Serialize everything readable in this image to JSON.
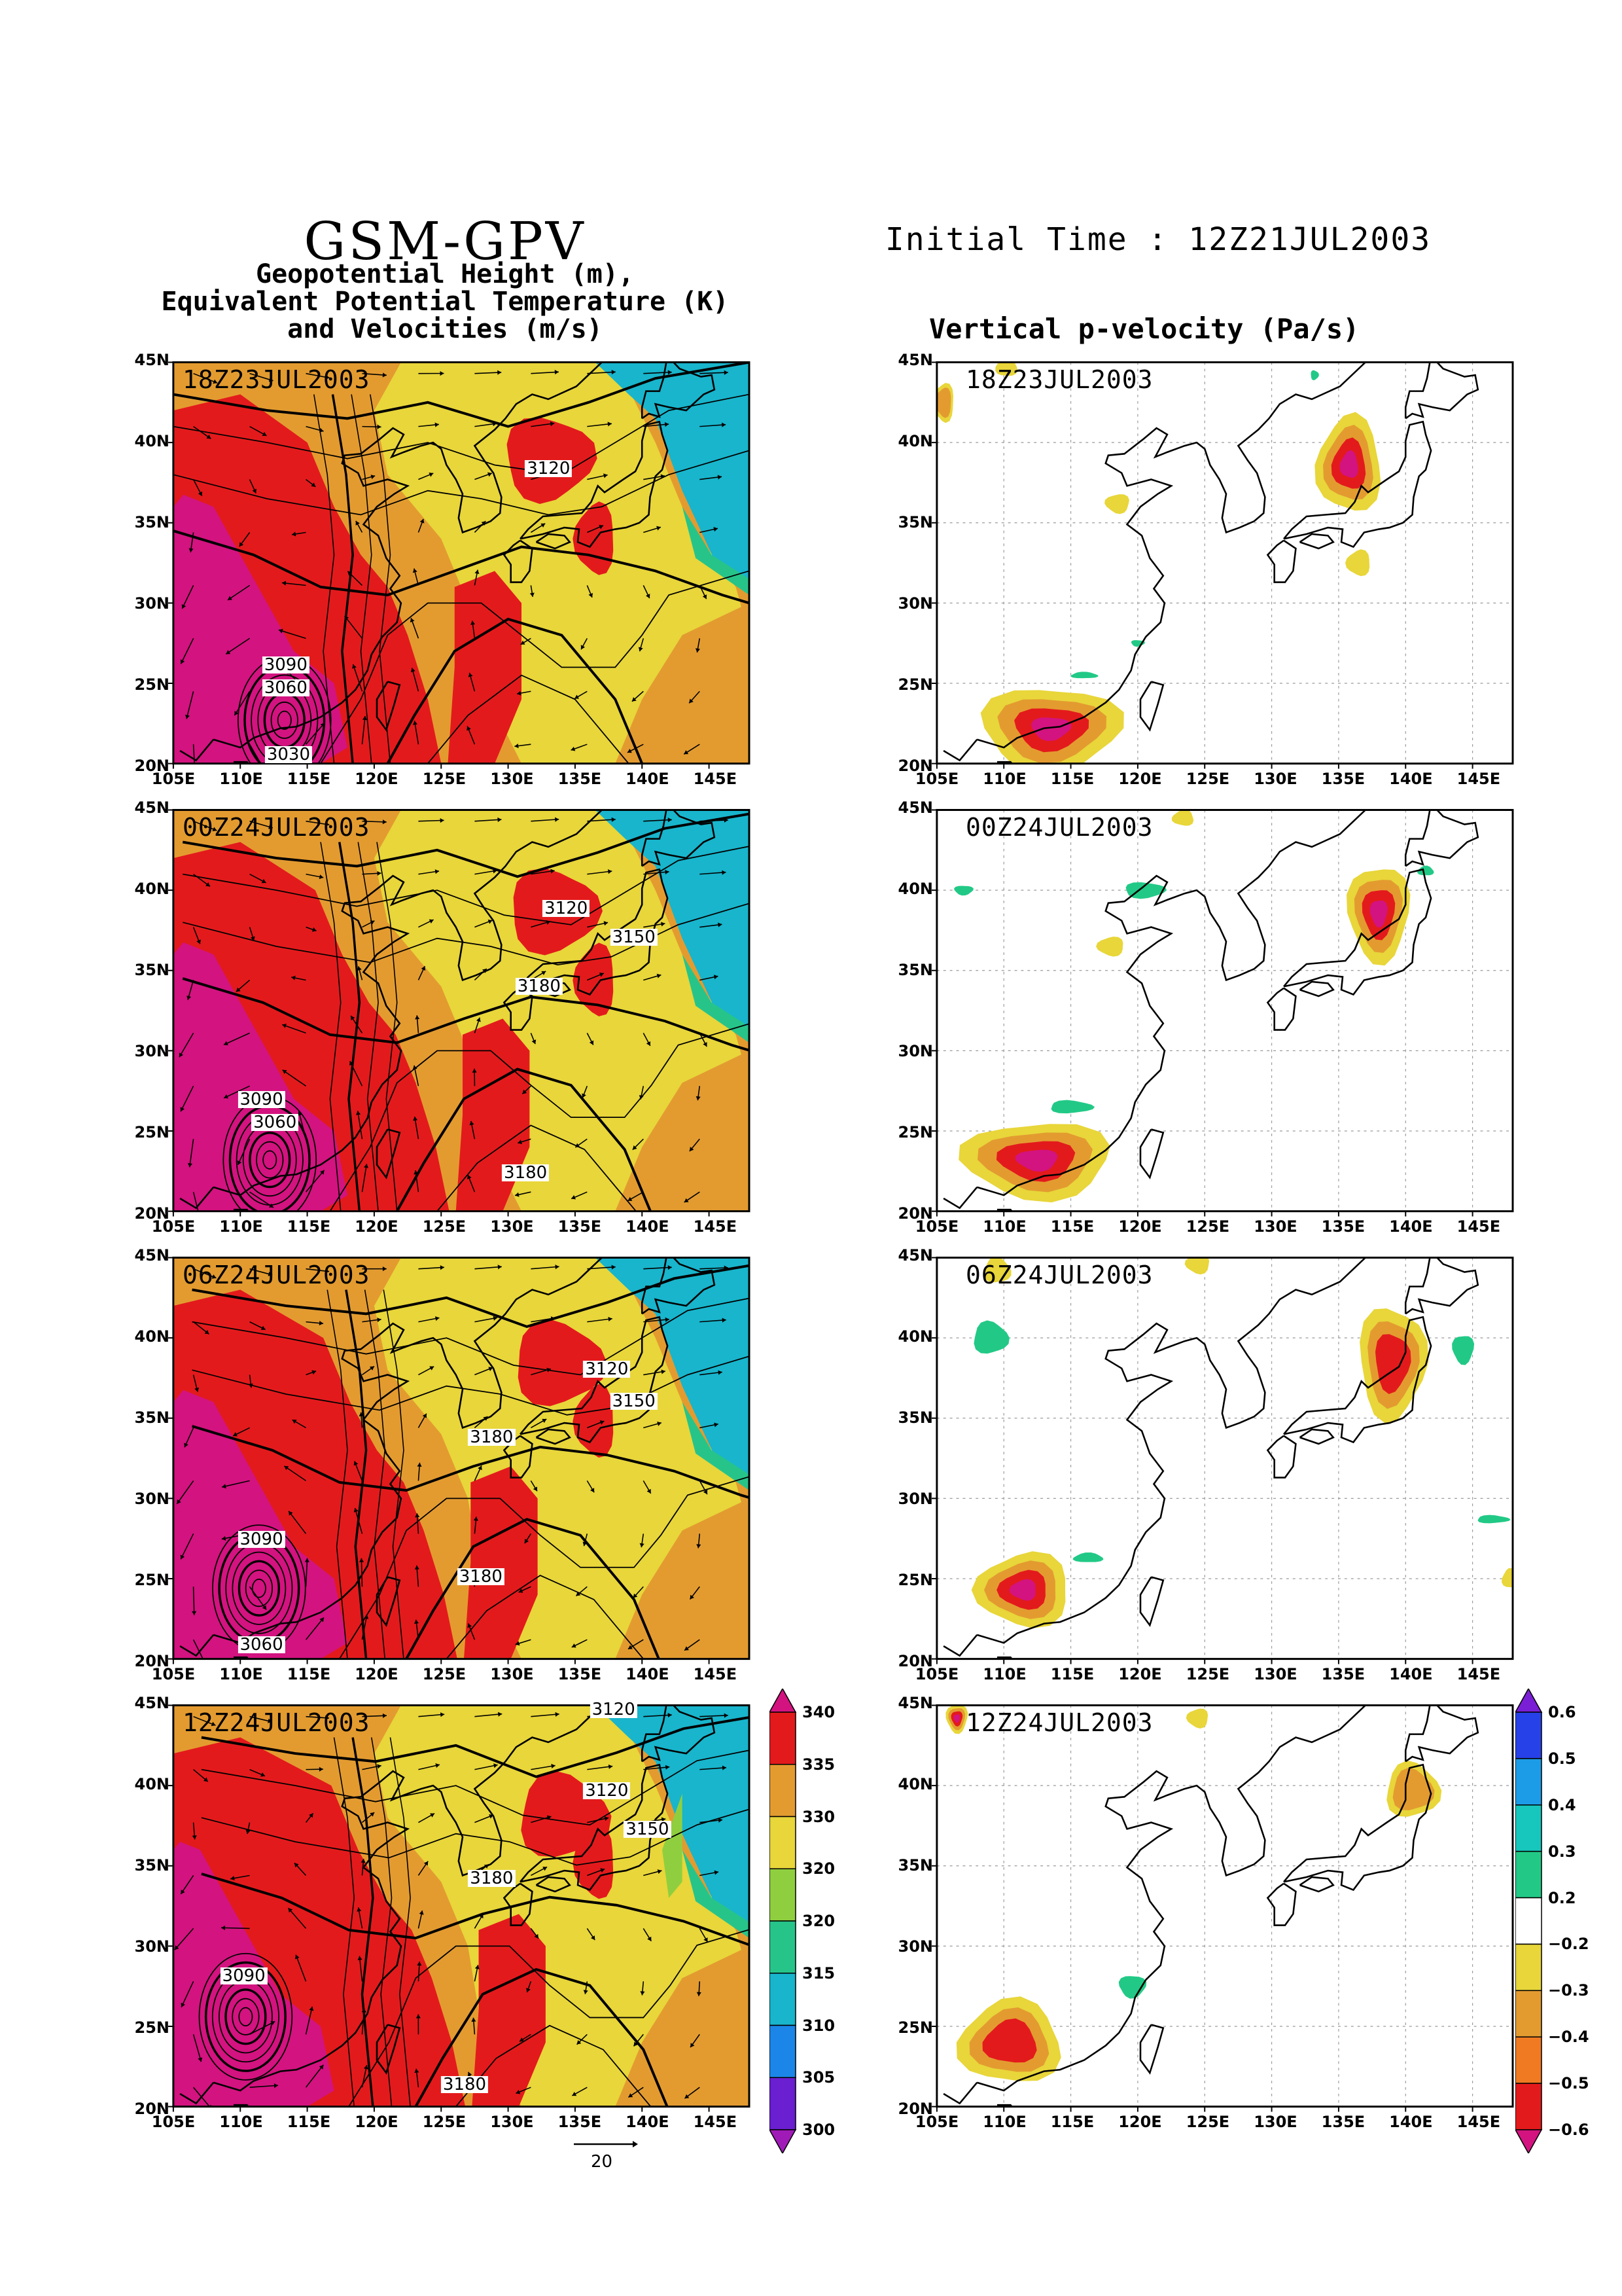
{
  "header": {
    "title": "GSM-GPV",
    "subtitle_lines": [
      "Geopotential Height (m),",
      "Equivalent Potential Temperature (K)",
      "and Velocities (m/s)"
    ],
    "initial_time": "Initial Time : 12Z21JUL2003",
    "right_title": "Vertical p-velocity (Pa/s)"
  },
  "axes": {
    "lat_ticks": [
      "45N",
      "40N",
      "35N",
      "30N",
      "25N",
      "20N"
    ],
    "lon_ticks": [
      "105E",
      "110E",
      "115E",
      "120E",
      "125E",
      "130E",
      "135E",
      "140E",
      "145E"
    ]
  },
  "panels": [
    {
      "time": "18Z23JUL2003",
      "contour_labels": [
        {
          "text": "3120",
          "lon": 132.7,
          "lat": 38.3
        },
        {
          "text": "3090",
          "lon": 113.3,
          "lat": 26.2
        },
        {
          "text": "3060",
          "lon": 113.3,
          "lat": 24.8
        },
        {
          "text": "3030",
          "lon": 113.5,
          "lat": 20.7
        }
      ]
    },
    {
      "time": "00Z24JUL2003",
      "contour_labels": [
        {
          "text": "3120",
          "lon": 134.0,
          "lat": 38.8
        },
        {
          "text": "3150",
          "lon": 139.0,
          "lat": 37.0
        },
        {
          "text": "3180",
          "lon": 132.0,
          "lat": 34.0
        },
        {
          "text": "3090",
          "lon": 111.5,
          "lat": 27.0
        },
        {
          "text": "3060",
          "lon": 112.5,
          "lat": 25.6
        },
        {
          "text": "3180",
          "lon": 131.0,
          "lat": 22.5
        }
      ]
    },
    {
      "time": "06Z24JUL2003",
      "contour_labels": [
        {
          "text": "3120",
          "lon": 137.0,
          "lat": 38.0
        },
        {
          "text": "3150",
          "lon": 139.0,
          "lat": 36.0
        },
        {
          "text": "3180",
          "lon": 128.5,
          "lat": 33.8
        },
        {
          "text": "3090",
          "lon": 111.5,
          "lat": 27.5
        },
        {
          "text": "3180",
          "lon": 127.7,
          "lat": 25.2
        },
        {
          "text": "3060",
          "lon": 111.5,
          "lat": 21.0
        }
      ]
    },
    {
      "time": "12Z24JUL2003",
      "contour_labels": [
        {
          "text": "3120",
          "lon": 137.5,
          "lat": 44.6
        },
        {
          "text": "3120",
          "lon": 137.0,
          "lat": 39.6
        },
        {
          "text": "3150",
          "lon": 140.0,
          "lat": 37.2
        },
        {
          "text": "3180",
          "lon": 128.5,
          "lat": 34.2
        },
        {
          "text": "3090",
          "lon": 110.2,
          "lat": 28.2
        },
        {
          "text": "3180",
          "lon": 126.5,
          "lat": 21.5
        }
      ]
    }
  ],
  "colorbars": {
    "ept": {
      "ticks": [
        "340",
        "335",
        "330",
        "320",
        "320",
        "315",
        "310",
        "305",
        "300"
      ],
      "colors": [
        "#d3137f",
        "#e31a1c",
        "#e39b30",
        "#e8d63a",
        "#8fcf3f",
        "#27c48a",
        "#18b5cc",
        "#1c86e8",
        "#6a1fd0",
        "#a01ab8"
      ]
    },
    "omega": {
      "ticks": [
        "0.6",
        "0.5",
        "0.4",
        "0.3",
        "0.2",
        "−0.2",
        "−0.3",
        "−0.4",
        "−0.5",
        "−0.6"
      ],
      "colors": [
        "#7a1fd6",
        "#2741e8",
        "#1c9ce6",
        "#17c7bd",
        "#22c986",
        "#ffffff",
        "#e8d63a",
        "#e39b30",
        "#f07a22",
        "#e31a1c",
        "#d3137f"
      ]
    }
  },
  "vector_scale": {
    "label": "20"
  },
  "colors": {
    "frame": "#000000",
    "coast": "#000000",
    "grid": "#9a9a9a"
  }
}
